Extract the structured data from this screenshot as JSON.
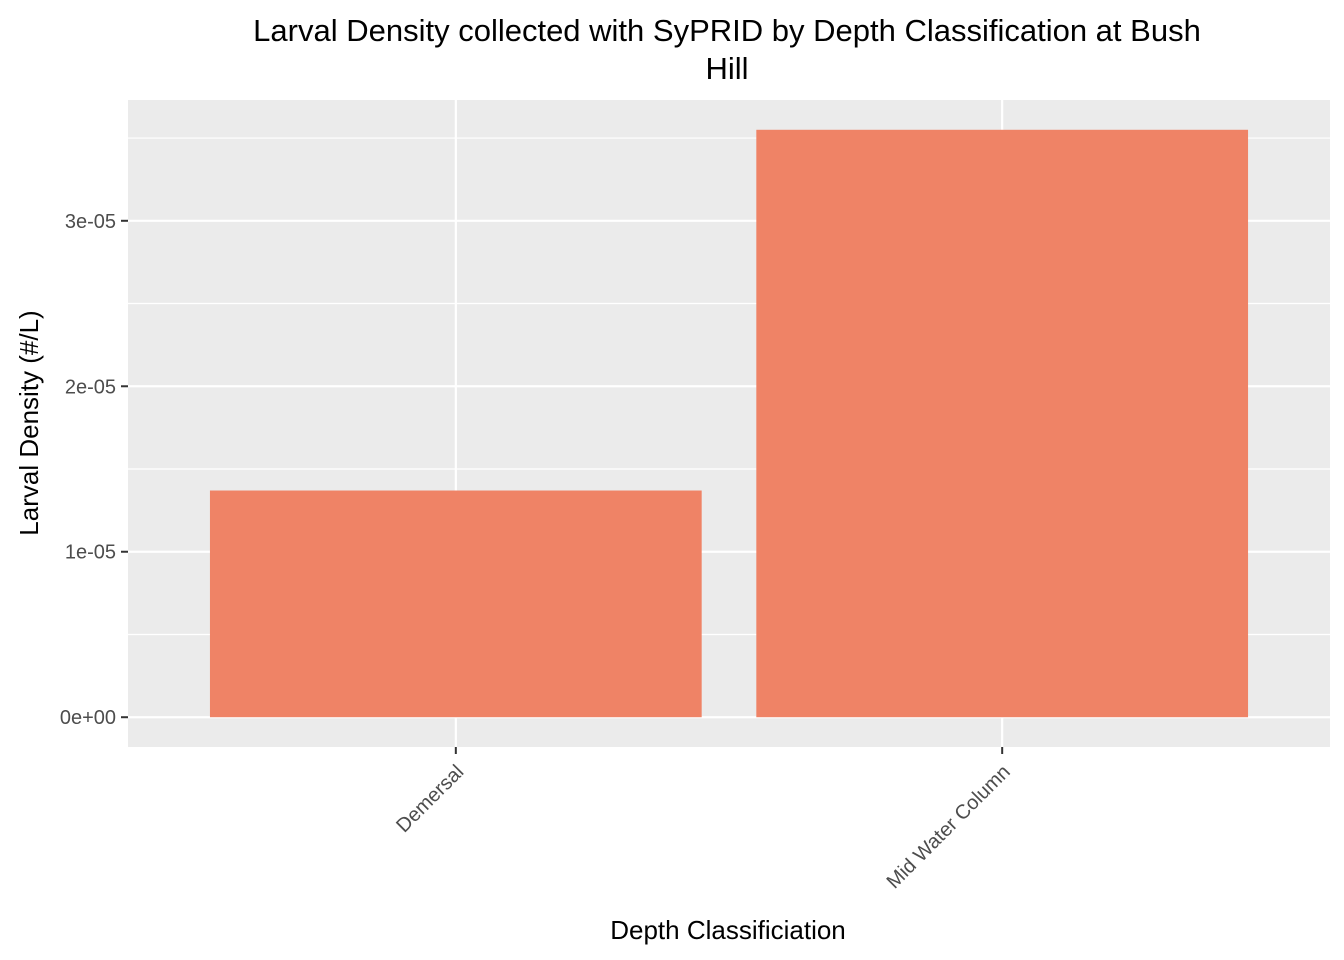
{
  "chart_data": {
    "type": "bar",
    "title_lines": [
      "Larval Density collected with SyPRID by Depth Classification at Bush",
      "Hill"
    ],
    "xlabel": "Depth Classificiation",
    "ylabel": "Larval Density (#/L)",
    "categories": [
      "Demersal",
      "Mid Water Column"
    ],
    "values": [
      1.37e-05,
      3.55e-05
    ],
    "ylim": [
      -1.8e-06,
      3.73e-05
    ],
    "yticks": [
      0,
      1e-05,
      2e-05,
      3e-05
    ],
    "ytick_labels": [
      "0e+00",
      "1e-05",
      "2e-05",
      "3e-05"
    ],
    "bar_color": "#EF8366",
    "panel_color": "#EBEBEB",
    "grid_color": "#FFFFFF",
    "grid": true,
    "legend": "none"
  }
}
